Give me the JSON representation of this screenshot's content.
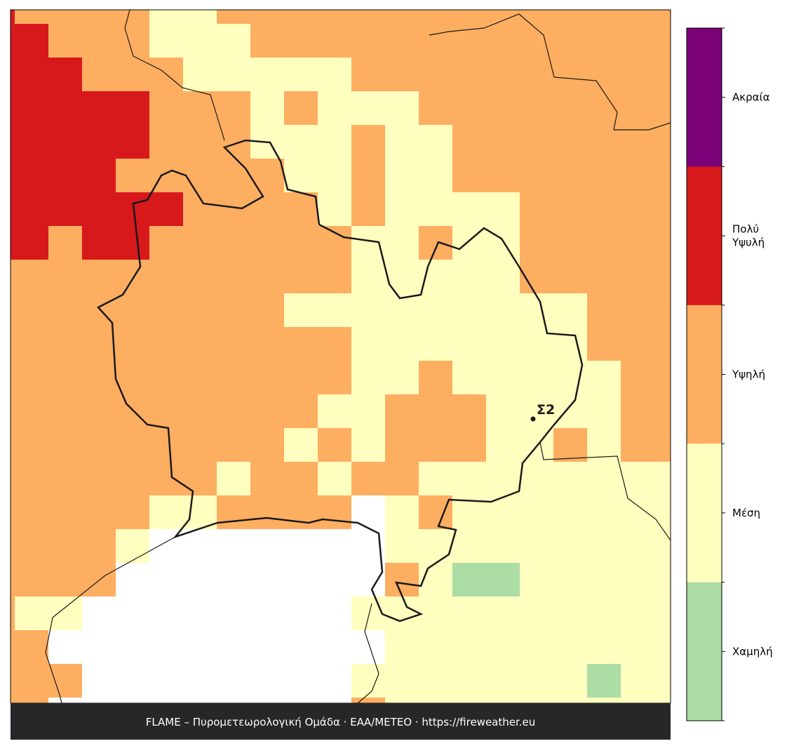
{
  "legend": {
    "items": [
      {
        "label_lines": [
          "Ακραία"
        ],
        "color": "#7a0177"
      },
      {
        "label_lines": [
          "Πολύ",
          "Υψυλή"
        ],
        "color": "#d7191c"
      },
      {
        "label_lines": [
          "Υψηλή"
        ],
        "color": "#fdae61"
      },
      {
        "label_lines": [
          "Μέση"
        ],
        "color": "#ffffbf"
      },
      {
        "label_lines": [
          "Χαμηλή"
        ],
        "color": "#abdda4"
      }
    ]
  },
  "station": {
    "label": "Σ2"
  },
  "footer": {
    "text": "FLAME – Πυρομετεωρολογική Ομάδα · ΕΑΑ/METEO · https://fireweather.eu"
  }
}
